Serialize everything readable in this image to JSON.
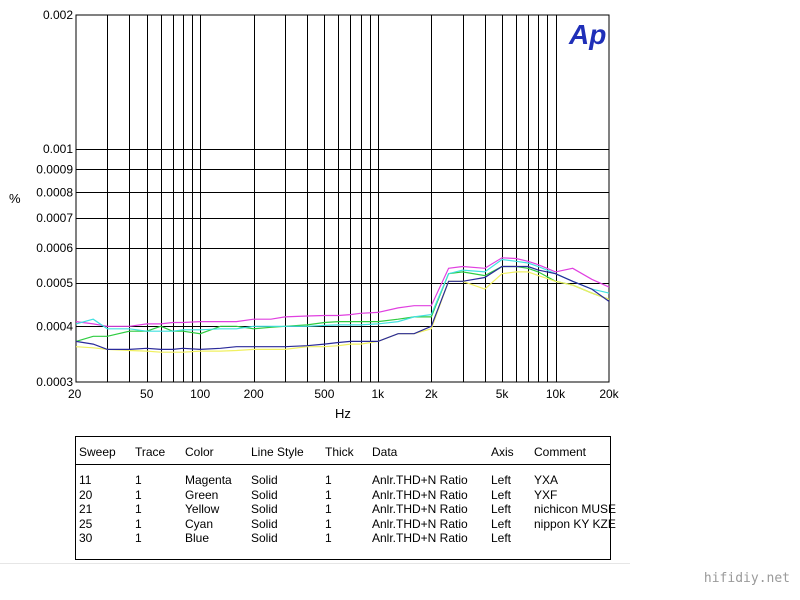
{
  "chart_data": {
    "type": "line",
    "xlabel": "Hz",
    "ylabel": "%",
    "xscale": "log",
    "yscale": "log",
    "xlim": [
      20,
      20000
    ],
    "ylim": [
      0.0003,
      0.002
    ],
    "grid": true,
    "x_ticks": [
      {
        "value": 20,
        "label": "20"
      },
      {
        "value": 50,
        "label": "50"
      },
      {
        "value": 100,
        "label": "100"
      },
      {
        "value": 200,
        "label": "200"
      },
      {
        "value": 500,
        "label": "500"
      },
      {
        "value": 1000,
        "label": "1k"
      },
      {
        "value": 2000,
        "label": "2k"
      },
      {
        "value": 5000,
        "label": "5k"
      },
      {
        "value": 10000,
        "label": "10k"
      },
      {
        "value": 20000,
        "label": "20k"
      }
    ],
    "y_ticks": [
      {
        "value": 0.002,
        "label": "0.002"
      },
      {
        "value": 0.001,
        "label": "0.001"
      },
      {
        "value": 0.0009,
        "label": "0.0009"
      },
      {
        "value": 0.0008,
        "label": "0.0008"
      },
      {
        "value": 0.0007,
        "label": "0.0007"
      },
      {
        "value": 0.0006,
        "label": "0.0006"
      },
      {
        "value": 0.0005,
        "label": "0.0005"
      },
      {
        "value": 0.0004,
        "label": "0.0004"
      },
      {
        "value": 0.0003,
        "label": "0.0003"
      }
    ],
    "x_grid": [
      30,
      40,
      50,
      60,
      70,
      80,
      90,
      100,
      200,
      300,
      400,
      500,
      600,
      700,
      800,
      900,
      1000,
      2000,
      3000,
      4000,
      5000,
      6000,
      7000,
      8000,
      9000,
      10000
    ],
    "y_grid": [
      0.0004,
      0.0005,
      0.0006,
      0.0007,
      0.0008,
      0.0009,
      0.001
    ],
    "series": [
      {
        "sweep": "11",
        "color": "#e040e0",
        "x": [
          20,
          25,
          30,
          40,
          50,
          60,
          70,
          80,
          100,
          130,
          160,
          200,
          250,
          300,
          400,
          500,
          600,
          700,
          800,
          1000,
          1300,
          1600,
          2000,
          2500,
          3000,
          4000,
          5000,
          6000,
          7000,
          8000,
          10000,
          12500,
          16000,
          20000
        ],
        "y": [
          0.00041,
          0.000405,
          0.0004,
          0.0004,
          0.000405,
          0.000405,
          0.000408,
          0.000408,
          0.00041,
          0.00041,
          0.00041,
          0.000415,
          0.000415,
          0.00042,
          0.000422,
          0.000423,
          0.000423,
          0.000425,
          0.000428,
          0.00043,
          0.00044,
          0.000445,
          0.000445,
          0.00054,
          0.000545,
          0.00054,
          0.00057,
          0.000568,
          0.00056,
          0.00055,
          0.00053,
          0.00054,
          0.00051,
          0.00049
        ]
      },
      {
        "sweep": "20",
        "color": "#2ecc40",
        "x": [
          20,
          25,
          30,
          40,
          50,
          60,
          70,
          80,
          100,
          130,
          160,
          200,
          250,
          300,
          400,
          500,
          600,
          700,
          800,
          1000,
          1300,
          1600,
          2000,
          2500,
          3000,
          4000,
          5000,
          6000,
          7000,
          8000,
          10000,
          12500,
          16000,
          20000
        ],
        "y": [
          0.00037,
          0.00038,
          0.00038,
          0.00039,
          0.00039,
          0.0004,
          0.00039,
          0.00039,
          0.000385,
          0.0004,
          0.0004,
          0.000395,
          0.000398,
          0.0004,
          0.000403,
          0.000408,
          0.00041,
          0.00041,
          0.00041,
          0.00041,
          0.000415,
          0.00042,
          0.00042,
          0.000525,
          0.00053,
          0.00052,
          0.000545,
          0.000545,
          0.00054,
          0.00053,
          0.000505,
          0.000495,
          0.000475,
          0.00046
        ]
      },
      {
        "sweep": "21",
        "color": "#f0f060",
        "x": [
          20,
          25,
          30,
          40,
          50,
          60,
          70,
          80,
          100,
          130,
          160,
          200,
          250,
          300,
          400,
          500,
          600,
          700,
          800,
          1000,
          1300,
          1600,
          2000,
          2500,
          3000,
          4000,
          5000,
          6000,
          7000,
          8000,
          10000,
          12500,
          16000,
          20000
        ],
        "y": [
          0.00036,
          0.000358,
          0.000355,
          0.000353,
          0.000352,
          0.00035,
          0.00035,
          0.00035,
          0.000352,
          0.000352,
          0.000353,
          0.000355,
          0.000355,
          0.000355,
          0.00036,
          0.00036,
          0.000362,
          0.000365,
          0.000365,
          0.00037,
          0.000385,
          0.000385,
          0.000395,
          0.000505,
          0.000505,
          0.000485,
          0.000525,
          0.00053,
          0.00053,
          0.00052,
          0.000505,
          0.000495,
          0.000475,
          0.00046
        ]
      },
      {
        "sweep": "25",
        "color": "#40e0e0",
        "x": [
          20,
          25,
          30,
          40,
          50,
          60,
          70,
          80,
          100,
          130,
          160,
          200,
          250,
          300,
          400,
          500,
          600,
          700,
          800,
          1000,
          1300,
          1600,
          2000,
          2500,
          3000,
          4000,
          5000,
          6000,
          7000,
          8000,
          10000,
          12500,
          16000,
          20000
        ],
        "y": [
          0.000405,
          0.000415,
          0.000395,
          0.000395,
          0.00039,
          0.00039,
          0.00039,
          0.000393,
          0.000393,
          0.000395,
          0.000395,
          0.0004,
          0.0004,
          0.0004,
          0.0004,
          0.000402,
          0.000403,
          0.000403,
          0.000403,
          0.000405,
          0.00041,
          0.00042,
          0.000425,
          0.000525,
          0.000535,
          0.00053,
          0.000565,
          0.00056,
          0.000555,
          0.000545,
          0.000525,
          0.000505,
          0.000485,
          0.000475
        ]
      },
      {
        "sweep": "30",
        "color": "#2a2a9a",
        "x": [
          20,
          25,
          30,
          40,
          50,
          60,
          70,
          80,
          100,
          130,
          160,
          200,
          250,
          300,
          400,
          500,
          600,
          700,
          800,
          1000,
          1300,
          1600,
          2000,
          2500,
          3000,
          4000,
          5000,
          6000,
          7000,
          8000,
          10000,
          12500,
          16000,
          20000
        ],
        "y": [
          0.00037,
          0.000365,
          0.000355,
          0.000355,
          0.000357,
          0.000355,
          0.000355,
          0.000357,
          0.000355,
          0.000357,
          0.00036,
          0.00036,
          0.00036,
          0.00036,
          0.000362,
          0.000365,
          0.000368,
          0.00037,
          0.00037,
          0.00037,
          0.000385,
          0.000385,
          0.0004,
          0.000505,
          0.000505,
          0.000515,
          0.000545,
          0.000545,
          0.000545,
          0.000535,
          0.000525,
          0.000505,
          0.000485,
          0.000455
        ]
      }
    ]
  },
  "logo": {
    "text": "Ap"
  },
  "legend": {
    "headers": [
      "Sweep",
      "Trace",
      "Color",
      "Line Style",
      "Thick",
      "Data",
      "Axis",
      "Comment"
    ],
    "rows": [
      [
        "11",
        "1",
        "Magenta",
        "Solid",
        "1",
        "Anlr.THD+N Ratio",
        "Left",
        "YXA"
      ],
      [
        "20",
        "1",
        "Green",
        "Solid",
        "1",
        "Anlr.THD+N Ratio",
        "Left",
        "YXF"
      ],
      [
        "21",
        "1",
        "Yellow",
        "Solid",
        "1",
        "Anlr.THD+N Ratio",
        "Left",
        "nichicon MUSE"
      ],
      [
        "25",
        "1",
        "Cyan",
        "Solid",
        "1",
        "Anlr.THD+N Ratio",
        "Left",
        "nippon KY KZE"
      ],
      [
        "30",
        "1",
        "Blue",
        "Solid",
        "1",
        "Anlr.THD+N Ratio",
        "Left",
        ""
      ]
    ]
  },
  "watermark": "hifidiy.net"
}
